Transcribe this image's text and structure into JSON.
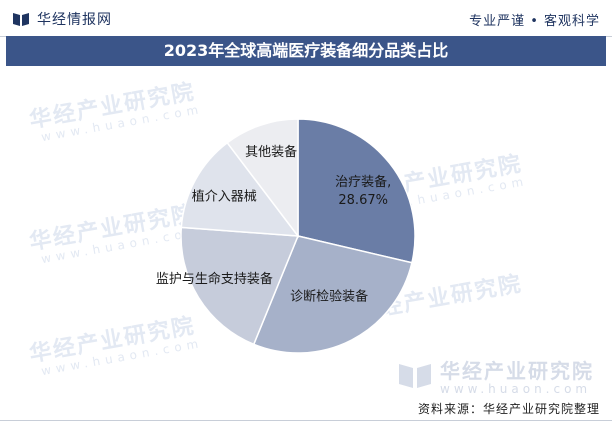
{
  "header": {
    "brand": "华经情报网",
    "brand_icon": "book-logo-icon",
    "tagline": "专业严谨 • 客观科学"
  },
  "watermark": {
    "text": "华经产业研究院",
    "url": "www.huaon.com"
  },
  "source": "资料来源：华经产业研究院整理",
  "colors": {
    "title_bar": "#3b5589",
    "brand": "#1f3460"
  },
  "chart_data": {
    "type": "pie",
    "title": "2023年全球高端医疗装备细分品类占比",
    "slices": [
      {
        "name": "治疗装备",
        "value": 28.67,
        "value_label": "28.67%",
        "color": "#6a7da6"
      },
      {
        "name": "诊断检验装备",
        "value": 27.5,
        "color": "#a6b1c9"
      },
      {
        "name": "监护与生命支持装备",
        "value": 20.0,
        "color": "#c6ccdb"
      },
      {
        "name": "植介入器械",
        "value": 13.5,
        "color": "#dfe3ec"
      },
      {
        "name": "其他装备",
        "value": 10.33,
        "color": "#ecedf1"
      }
    ],
    "legend": "none",
    "labels": "inside"
  }
}
